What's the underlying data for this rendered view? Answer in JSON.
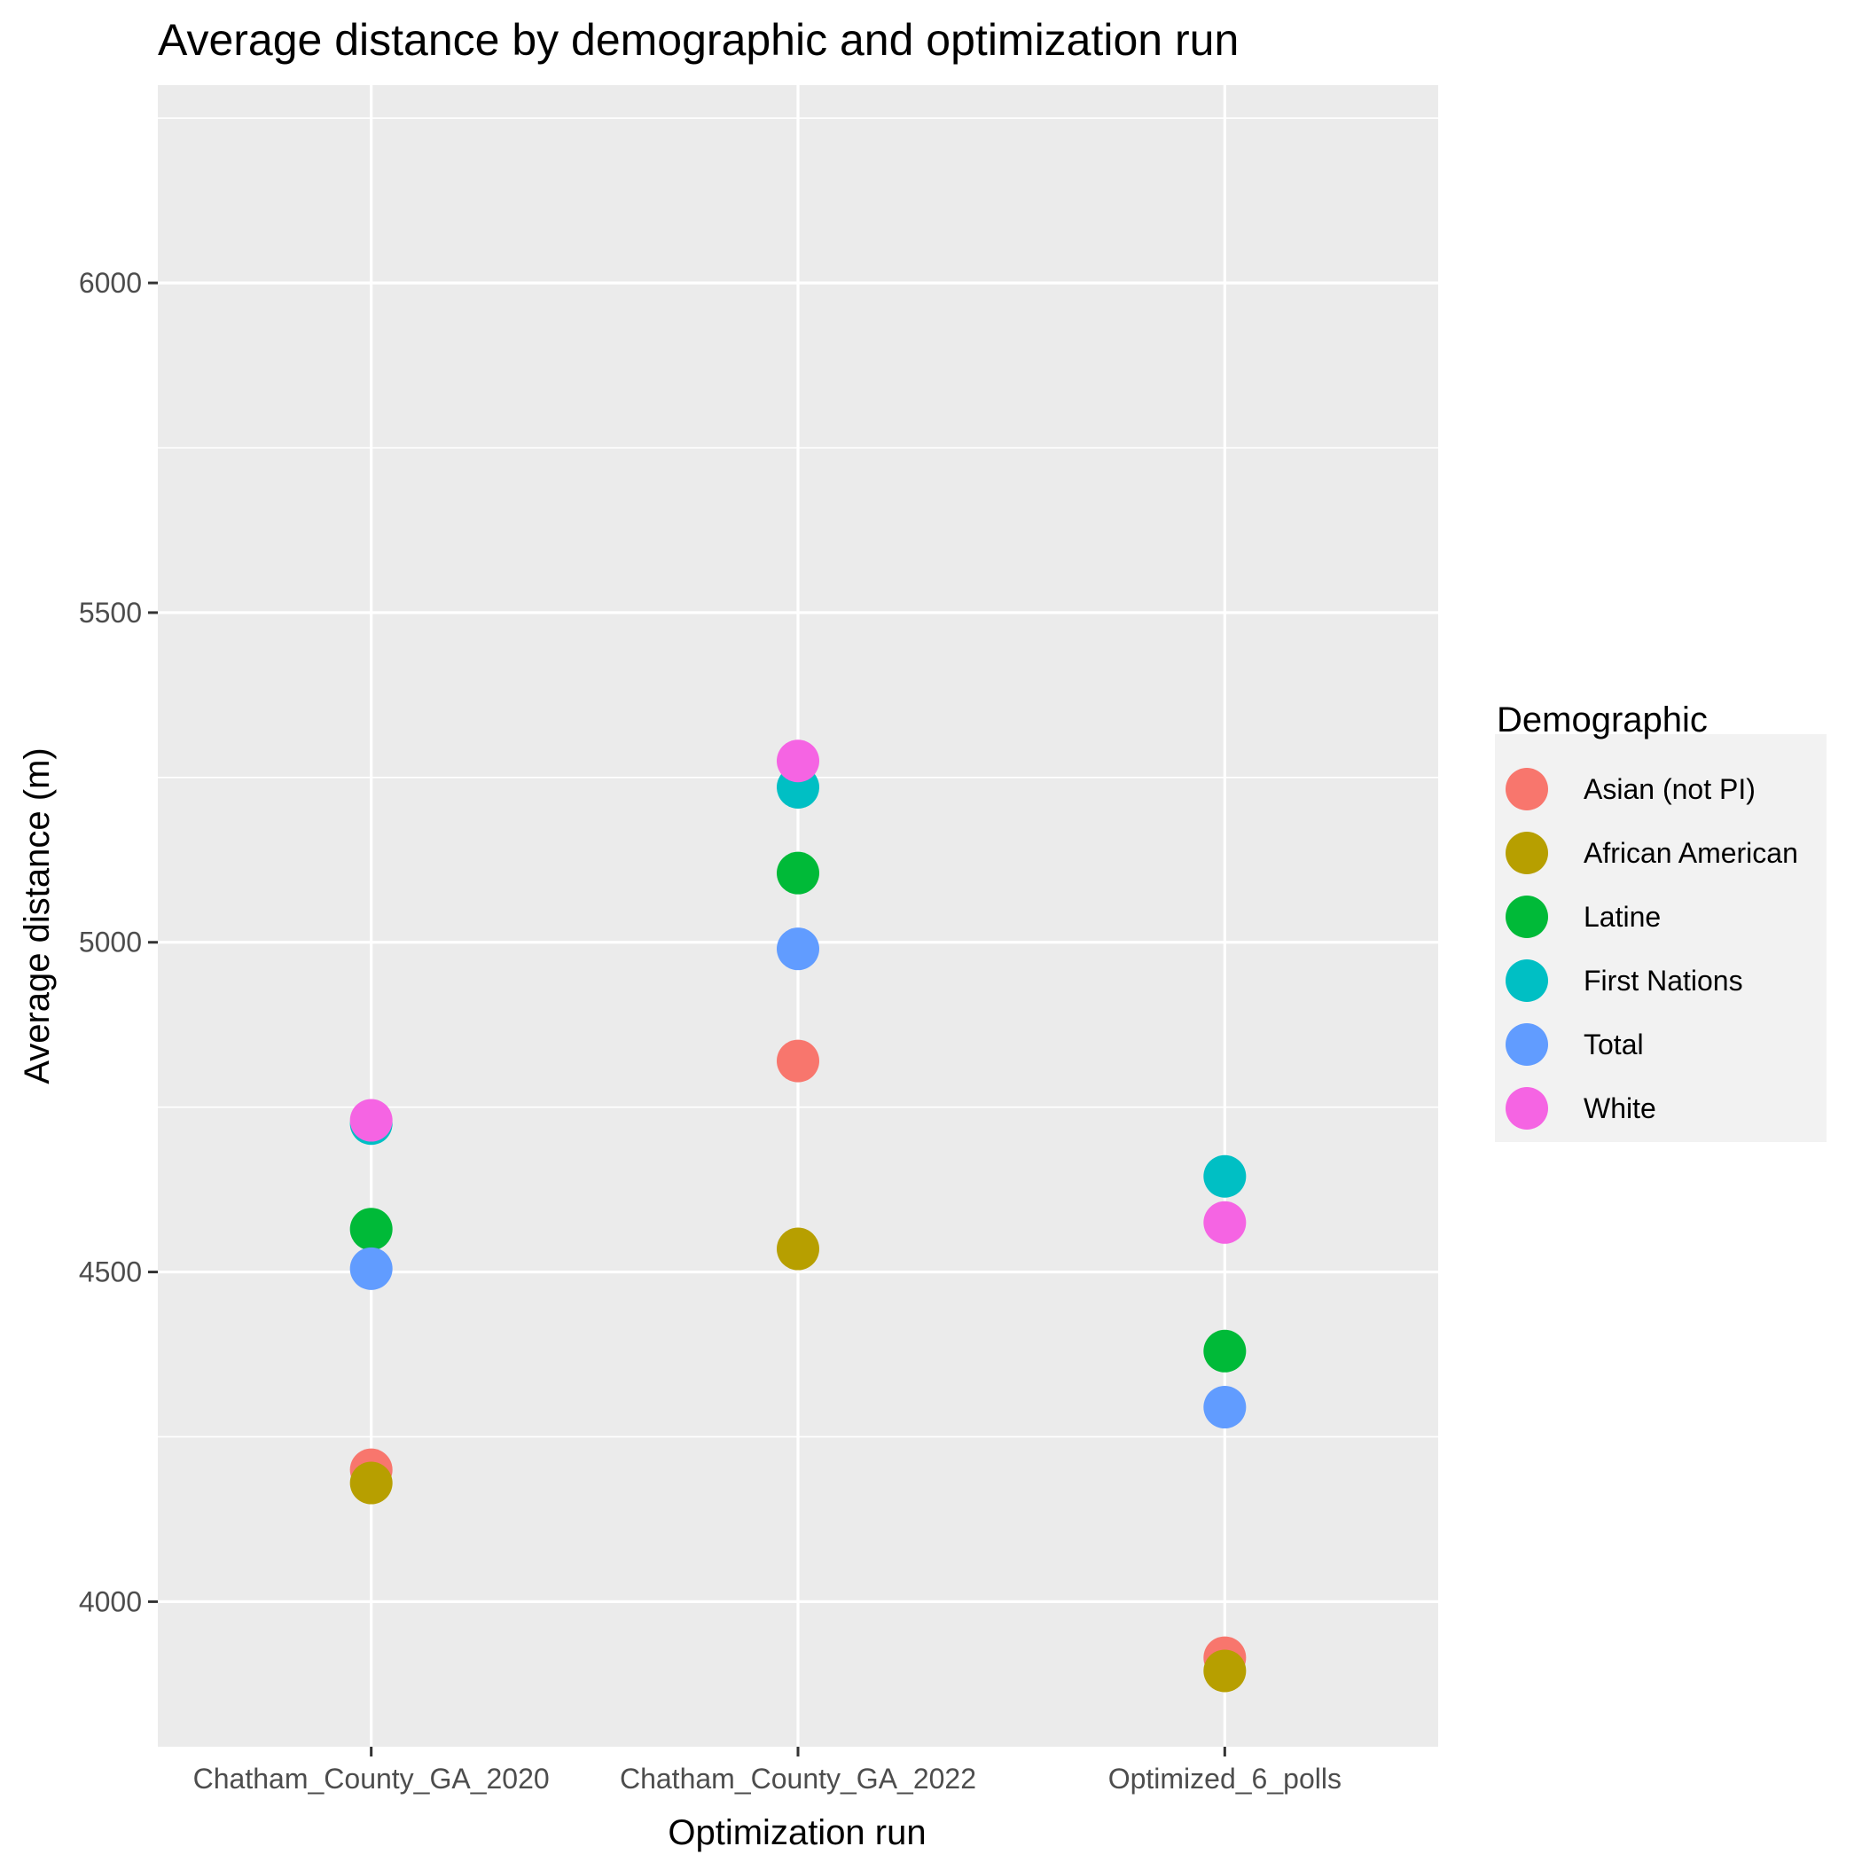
{
  "chart_data": {
    "type": "scatter",
    "title": "Average distance by demographic and optimization run",
    "xlabel": "Optimization run",
    "ylabel": "Average distance (m)",
    "categories": [
      "Chatham_County_GA_2020",
      "Chatham_County_GA_2022",
      "Optimized_6_polls"
    ],
    "ylim": [
      3780,
      6300
    ],
    "yticks": [
      4000,
      4500,
      5000,
      5500,
      6000
    ],
    "grid": true,
    "legend": {
      "title": "Demographic",
      "position": "right"
    },
    "series": [
      {
        "name": "Asian (not PI)",
        "color": "#F8766D",
        "values": [
          4200,
          4820,
          3915
        ]
      },
      {
        "name": "African American",
        "color": "#B79F00",
        "values": [
          4180,
          4535,
          3895
        ]
      },
      {
        "name": "Latine",
        "color": "#00BA38",
        "values": [
          4565,
          5105,
          4380
        ]
      },
      {
        "name": "First Nations",
        "color": "#00BFC4",
        "values": [
          4725,
          5235,
          4645
        ]
      },
      {
        "name": "Total",
        "color": "#619CFF",
        "values": [
          4505,
          4990,
          4295
        ]
      },
      {
        "name": "White",
        "color": "#F564E3",
        "values": [
          4730,
          5275,
          4575
        ]
      }
    ]
  }
}
